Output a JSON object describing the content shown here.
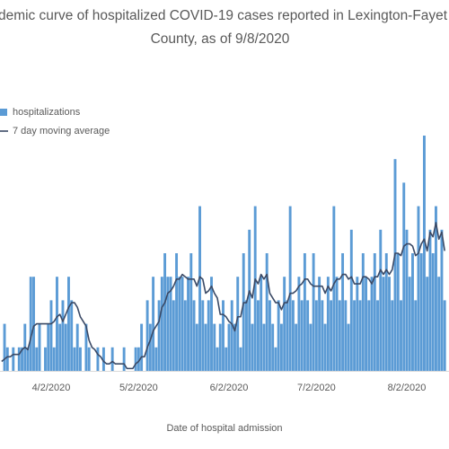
{
  "chart_data": {
    "type": "bar",
    "title": [
      "demic curve of hospitalized COVID-19 cases reported in Lexington-Fayet",
      "County, as of 9/8/2020"
    ],
    "x_label": "Date of hospital admission",
    "categories": [
      null,
      null,
      null,
      null,
      null,
      null,
      null,
      null,
      null,
      null,
      null,
      null,
      null,
      null,
      null,
      null,
      null,
      "4/2/2020",
      null,
      null,
      null,
      null,
      null,
      null,
      null,
      null,
      null,
      null,
      null,
      null,
      null,
      null,
      null,
      null,
      null,
      null,
      null,
      null,
      null,
      null,
      null,
      null,
      null,
      null,
      null,
      null,
      null,
      "5/2/2020",
      null,
      null,
      null,
      null,
      null,
      null,
      null,
      null,
      null,
      null,
      null,
      null,
      null,
      null,
      null,
      null,
      null,
      null,
      null,
      null,
      null,
      null,
      null,
      null,
      null,
      null,
      null,
      null,
      null,
      null,
      "6/2/2020",
      null,
      null,
      null,
      null,
      null,
      null,
      null,
      null,
      null,
      null,
      null,
      null,
      null,
      null,
      null,
      null,
      null,
      null,
      null,
      null,
      null,
      null,
      null,
      null,
      null,
      null,
      null,
      null,
      null,
      "7/2/2020",
      null,
      null,
      null,
      null,
      null,
      null,
      null,
      null,
      null,
      null,
      null,
      null,
      null,
      null,
      null,
      null,
      null,
      null,
      null,
      null,
      null,
      null,
      null,
      null,
      null,
      null,
      null,
      null,
      null,
      null,
      "8/2/2020",
      null,
      null,
      null,
      null,
      null,
      null,
      null,
      null,
      null,
      null,
      null,
      null,
      null
    ],
    "series": [
      {
        "name": "hospitalizations",
        "type": "bar",
        "color": "#5b9bd5",
        "values": [
          0,
          2,
          1,
          0,
          1,
          0,
          1,
          1,
          2,
          1,
          4,
          4,
          1,
          2,
          0,
          1,
          2,
          3,
          1,
          4,
          2,
          3,
          2,
          4,
          3,
          1,
          2,
          1,
          0,
          2,
          1,
          0,
          0,
          1,
          0,
          1,
          0,
          0,
          1,
          0,
          0,
          0,
          1,
          0,
          0,
          0,
          1,
          1,
          2,
          0,
          3,
          2,
          4,
          1,
          3,
          4,
          5,
          4,
          4,
          3,
          5,
          4,
          4,
          3,
          4,
          5,
          3,
          2,
          7,
          3,
          2,
          3,
          4,
          2,
          1,
          2,
          3,
          1,
          2,
          3,
          2,
          4,
          1,
          5,
          3,
          6,
          2,
          7,
          3,
          4,
          2,
          5,
          3,
          2,
          1,
          3,
          2,
          4,
          3,
          7,
          3,
          2,
          4,
          3,
          5,
          3,
          2,
          5,
          3,
          4,
          3,
          2,
          4,
          3,
          7,
          4,
          3,
          5,
          3,
          2,
          6,
          3,
          4,
          3,
          5,
          4,
          3,
          4,
          5,
          3,
          6,
          4,
          5,
          4,
          3,
          9,
          5,
          3,
          8,
          6,
          4,
          5,
          3,
          7,
          5,
          10,
          4,
          6,
          5,
          7,
          4,
          6,
          3
        ]
      },
      {
        "name": "7 day moving average",
        "type": "line",
        "color": "#3b4a66",
        "values": [
          0.4,
          0.5,
          0.6,
          0.6,
          0.7,
          0.7,
          0.7,
          0.9,
          1.0,
          0.9,
          1.4,
          1.9,
          2.0,
          2.0,
          2.0,
          2.0,
          2.0,
          2.0,
          2.1,
          2.3,
          2.4,
          2.1,
          2.4,
          2.7,
          2.9,
          2.9,
          2.7,
          2.3,
          2.1,
          1.9,
          1.3,
          1.0,
          0.9,
          0.7,
          0.6,
          0.4,
          0.3,
          0.3,
          0.4,
          0.3,
          0.3,
          0.3,
          0.3,
          0.1,
          0.1,
          0.1,
          0.3,
          0.4,
          0.6,
          0.6,
          1.0,
          1.3,
          1.7,
          1.9,
          2.1,
          2.7,
          2.9,
          3.3,
          3.4,
          3.6,
          3.9,
          3.9,
          4.1,
          4.0,
          3.9,
          3.9,
          3.9,
          3.6,
          4.0,
          3.9,
          3.3,
          3.4,
          3.6,
          3.3,
          3.1,
          2.4,
          2.4,
          2.3,
          2.1,
          2.0,
          1.7,
          2.3,
          2.3,
          2.9,
          2.9,
          3.4,
          3.1,
          3.9,
          3.7,
          4.1,
          3.9,
          4.1,
          3.3,
          3.1,
          2.9,
          2.9,
          2.6,
          2.9,
          2.9,
          3.3,
          3.3,
          3.4,
          3.6,
          3.7,
          3.9,
          3.9,
          3.7,
          3.6,
          3.6,
          3.6,
          3.6,
          3.3,
          3.6,
          3.4,
          3.7,
          3.9,
          3.9,
          4.1,
          4.1,
          3.9,
          4.0,
          3.7,
          3.7,
          3.7,
          4.0,
          4.0,
          3.9,
          3.7,
          4.0,
          4.0,
          4.3,
          4.1,
          4.3,
          4.1,
          4.3,
          5.0,
          5.0,
          4.9,
          5.3,
          5.4,
          5.4,
          5.3,
          4.9,
          5.0,
          5.4,
          5.6,
          5.1,
          5.9,
          5.7,
          6.3,
          5.6,
          5.9,
          5.1
        ]
      }
    ],
    "ylim": [
      0,
      11
    ],
    "legend": "top-left"
  }
}
